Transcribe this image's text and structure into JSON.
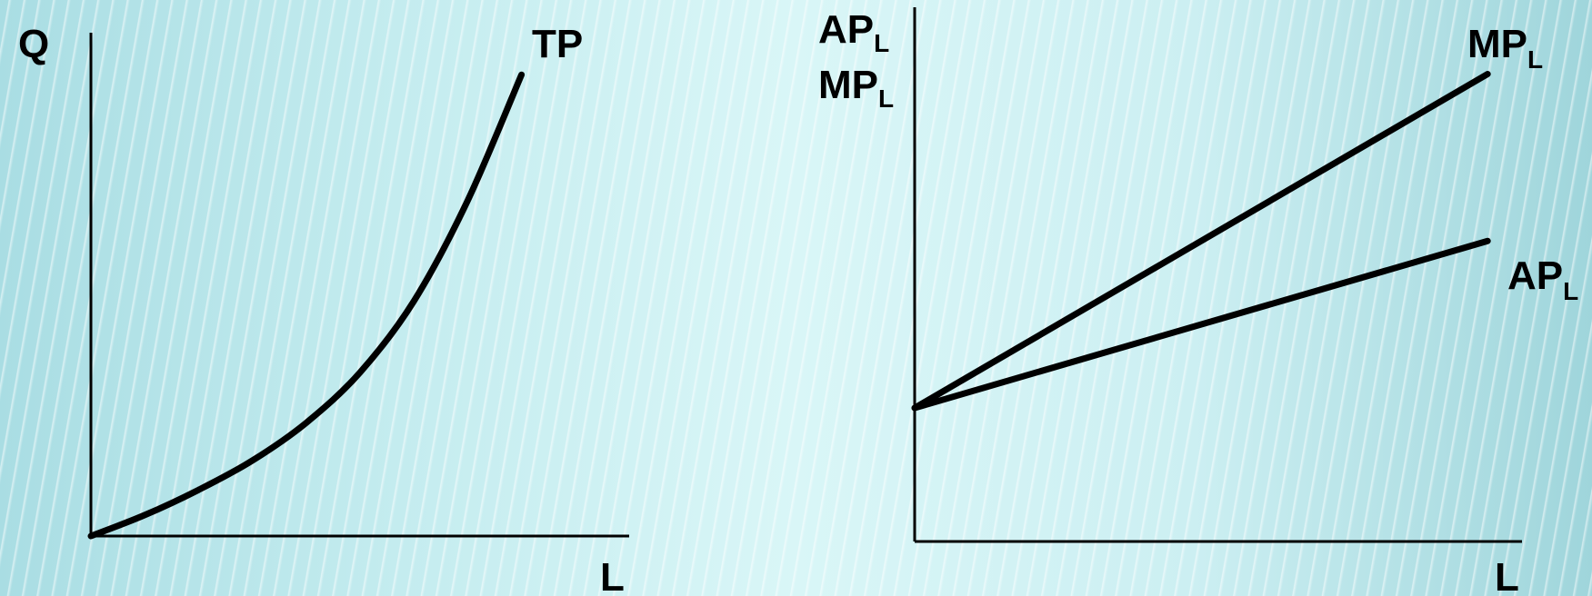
{
  "colors": {
    "line": "#000000",
    "background": "#c9eef1"
  },
  "chart_data": [
    {
      "type": "line",
      "ylabel": "Q",
      "xlabel": "L",
      "series": [
        {
          "name": "TP",
          "x": [
            0,
            1,
            2,
            3,
            4,
            5,
            6,
            7,
            8
          ],
          "y": [
            0,
            1,
            2.2,
            3.6,
            5.4,
            7.8,
            11.2,
            16,
            22
          ]
        }
      ],
      "xlim": [
        0,
        10
      ],
      "ylim": [
        0,
        24
      ],
      "grid": false
    },
    {
      "type": "line",
      "ylabel_lines": [
        {
          "main": "AP",
          "sub": "L"
        },
        {
          "main": "MP",
          "sub": "L"
        }
      ],
      "xlabel": "L",
      "series": [
        {
          "name": "MP",
          "name_sub": "L",
          "x": [
            0,
            10
          ],
          "y": [
            4,
            14
          ]
        },
        {
          "name": "AP",
          "name_sub": "L",
          "x": [
            0,
            10
          ],
          "y": [
            4,
            9
          ]
        }
      ],
      "xlim": [
        0,
        10.6
      ],
      "ylim": [
        0,
        16
      ],
      "grid": false
    }
  ]
}
